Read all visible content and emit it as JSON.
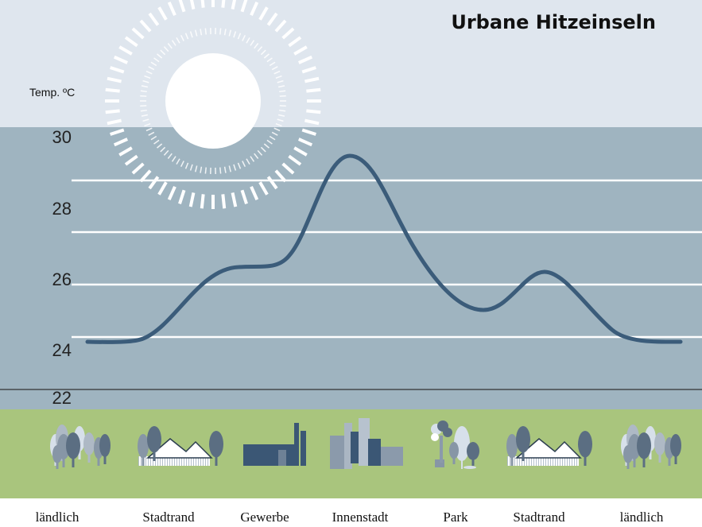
{
  "chart_data": {
    "type": "line",
    "title": "Urbane Hitzeinseln",
    "ylabel": "Temp. ºC",
    "xlabel": "",
    "ylim": [
      22,
      30
    ],
    "yticks": [
      22,
      24,
      26,
      28,
      30
    ],
    "categories": [
      "ländlich",
      "Stadtrand",
      "Gewerbe",
      "Innenstadt",
      "Park",
      "Stadtrand",
      "ländlich"
    ],
    "series": [
      {
        "name": "Temperatur",
        "values": [
          24.0,
          24.3,
          26.5,
          29.5,
          25.5,
          26.6,
          24.0
        ]
      }
    ],
    "grid": true
  },
  "colors": {
    "sky": "#dfe6ee",
    "band": "#9fb4c0",
    "line": "#3b5c7a",
    "ground": "#a9c57d",
    "gridline": "#ffffff"
  },
  "icons": [
    "forest-icon",
    "suburb-icon",
    "factory-icon",
    "city-icon",
    "park-icon",
    "suburb-icon",
    "forest-icon"
  ]
}
